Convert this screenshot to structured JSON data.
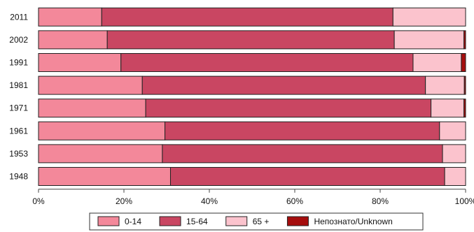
{
  "chart_data": {
    "type": "bar",
    "orientation": "horizontal",
    "stacked": "percent",
    "categories": [
      "2011",
      "2002",
      "1991",
      "1981",
      "1971",
      "1961",
      "1953",
      "1948"
    ],
    "series": [
      {
        "name": "0-14",
        "color": "#f3889a",
        "values": [
          14.8,
          16.1,
          19.3,
          24.3,
          25.1,
          29.6,
          29.0,
          30.9
        ]
      },
      {
        "name": "15-64",
        "color": "#c94662",
        "values": [
          68.2,
          67.2,
          68.4,
          66.3,
          66.8,
          64.3,
          65.6,
          64.2
        ]
      },
      {
        "name": "65 +",
        "color": "#fbc3cd",
        "values": [
          17.0,
          16.3,
          11.3,
          9.1,
          7.7,
          6.1,
          5.4,
          4.9
        ]
      },
      {
        "name": "Непознато/Unknown",
        "color": "#a50d0d",
        "values": [
          0.0,
          0.4,
          1.0,
          0.3,
          0.4,
          0.0,
          0.0,
          0.0
        ]
      }
    ],
    "x_ticks": [
      "0%",
      "20%",
      "40%",
      "60%",
      "80%",
      "100%"
    ],
    "xlim": [
      0,
      100
    ],
    "grid": false,
    "legend_position": "bottom"
  }
}
